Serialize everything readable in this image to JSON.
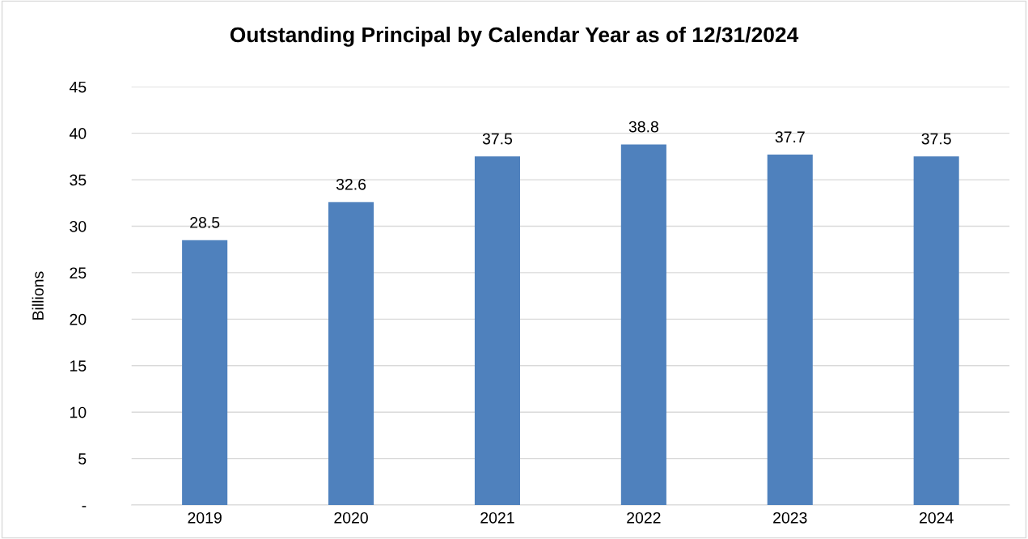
{
  "chart_data": {
    "type": "bar",
    "title": "Outstanding Principal by Calendar Year as of 12/31/2024",
    "ylabel": "Billions",
    "categories": [
      "2019",
      "2020",
      "2021",
      "2022",
      "2023",
      "2024"
    ],
    "values": [
      28.5,
      32.6,
      37.5,
      38.8,
      37.7,
      37.5
    ],
    "color": "#4f81bd",
    "ylim": [
      0,
      45
    ],
    "yticks": [
      {
        "value": 0,
        "label": "-"
      },
      5,
      10,
      15,
      20,
      25,
      30,
      35,
      40,
      45
    ],
    "grid": "y",
    "data_labels": true,
    "legend": false
  }
}
